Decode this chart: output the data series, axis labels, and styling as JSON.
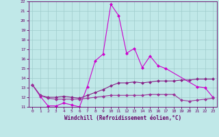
{
  "xlabel": "Windchill (Refroidissement éolien,°C)",
  "background_color": "#c0e8e8",
  "grid_color": "#a0cccc",
  "line_color1": "#cc00cc",
  "line_color2": "#882288",
  "line_color3": "#993399",
  "x_values": [
    0,
    1,
    2,
    3,
    4,
    5,
    6,
    7,
    8,
    9,
    10,
    11,
    12,
    13,
    14,
    15,
    16,
    17,
    18,
    19,
    20,
    21,
    22,
    23
  ],
  "series1": [
    13.3,
    12.1,
    11.1,
    11.1,
    11.4,
    11.2,
    11.0,
    13.1,
    15.8,
    16.5,
    21.7,
    20.5,
    16.6,
    17.1,
    15.1,
    16.3,
    15.3,
    15.0,
    null,
    null,
    null,
    13.1,
    13.0,
    12.0
  ],
  "series2": [
    13.3,
    12.2,
    12.0,
    12.0,
    12.1,
    12.0,
    11.9,
    12.2,
    12.5,
    12.8,
    13.2,
    13.5,
    13.5,
    13.6,
    13.5,
    13.6,
    13.7,
    13.7,
    13.7,
    13.8,
    13.8,
    13.9,
    13.9,
    13.9
  ],
  "series3": [
    13.3,
    12.2,
    11.9,
    11.8,
    11.8,
    11.8,
    11.8,
    11.9,
    12.0,
    12.1,
    12.2,
    12.2,
    12.2,
    12.2,
    12.2,
    12.3,
    12.3,
    12.3,
    12.3,
    11.7,
    11.6,
    11.7,
    11.8,
    11.9
  ],
  "ylim": [
    11,
    22
  ],
  "yticks": [
    11,
    12,
    13,
    14,
    15,
    16,
    17,
    18,
    19,
    20,
    21,
    22
  ],
  "xticks": [
    0,
    1,
    2,
    3,
    4,
    5,
    6,
    7,
    8,
    9,
    10,
    11,
    12,
    13,
    14,
    15,
    16,
    17,
    18,
    19,
    20,
    21,
    22,
    23
  ],
  "markersize": 2.5,
  "linewidth": 0.8
}
